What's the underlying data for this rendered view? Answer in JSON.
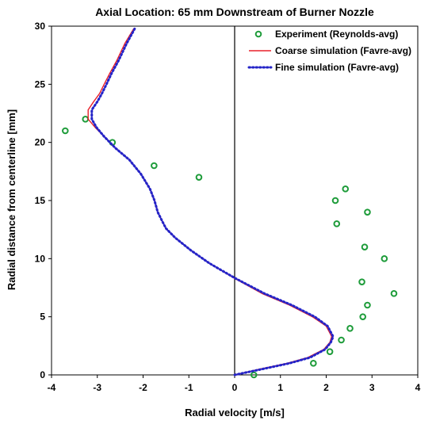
{
  "chart_data": {
    "type": "scatter",
    "title": "Axial Location: 65 mm Downstream of Burner Nozzle",
    "xlabel": "Radial velocity [m/s]",
    "ylabel": "Radial distance from centerline [mm]",
    "xlim": [
      -4,
      4
    ],
    "ylim": [
      0,
      30
    ],
    "xticks": [
      "-4",
      "-3",
      "-2",
      "-1",
      "0",
      "1",
      "2",
      "3",
      "4"
    ],
    "yticks": [
      "0",
      "5",
      "10",
      "15",
      "20",
      "25",
      "30"
    ],
    "grid": false,
    "legend_position": "top-right",
    "series": [
      {
        "name": "Experiment (Reynolds-avg)",
        "kind": "markers",
        "color": "#1e9c3a",
        "x": [
          0.42,
          1.72,
          2.08,
          2.33,
          2.52,
          2.8,
          2.9,
          3.48,
          2.78,
          3.27,
          2.84,
          2.23,
          2.9,
          2.2,
          2.42,
          -0.78,
          -1.76,
          -2.67,
          -3.26,
          -3.7
        ],
        "y": [
          0,
          1,
          2,
          3,
          4,
          5,
          6,
          7,
          8,
          10,
          11,
          13,
          14,
          15,
          16,
          17,
          18,
          20,
          22,
          21
        ]
      },
      {
        "name": "Coarse simulation (Favre-avg)",
        "kind": "solid",
        "color": "#e8202a",
        "x": [
          0.0,
          0.55,
          1.15,
          1.6,
          1.95,
          2.08,
          2.12,
          2.0,
          1.7,
          1.2,
          0.6,
          0.0,
          -0.55,
          -0.95,
          -1.3,
          -1.5,
          -1.58,
          -1.68,
          -1.75,
          -1.85,
          -2.05,
          -2.3,
          -2.6,
          -2.85,
          -3.05,
          -3.2,
          -3.2,
          -3.08,
          -2.95,
          -2.85,
          -2.72,
          -2.58,
          -2.4,
          -2.2
        ],
        "y": [
          0,
          0.5,
          1,
          1.5,
          2.2,
          2.8,
          3.3,
          4.2,
          5.0,
          6.0,
          7.0,
          8.3,
          9.6,
          10.7,
          11.8,
          12.6,
          13.2,
          14.0,
          15.0,
          16.0,
          17.3,
          18.5,
          19.5,
          20.5,
          21.3,
          22.0,
          22.8,
          23.5,
          24.2,
          25.0,
          26.0,
          27.0,
          28.5,
          29.8
        ]
      },
      {
        "name": "Fine simulation (Favre-avg)",
        "kind": "dotted",
        "color": "#2424c8",
        "x": [
          0.0,
          0.6,
          1.2,
          1.65,
          1.98,
          2.1,
          2.15,
          2.03,
          1.75,
          1.25,
          0.65,
          0.02,
          -0.55,
          -0.95,
          -1.3,
          -1.5,
          -1.58,
          -1.68,
          -1.75,
          -1.85,
          -2.05,
          -2.3,
          -2.6,
          -2.85,
          -3.02,
          -3.12,
          -3.12,
          -3.0,
          -2.9,
          -2.8,
          -2.68,
          -2.54,
          -2.36,
          -2.18
        ],
        "y": [
          0,
          0.5,
          1,
          1.5,
          2.2,
          2.8,
          3.3,
          4.2,
          5.0,
          6.0,
          7.0,
          8.3,
          9.6,
          10.7,
          11.8,
          12.6,
          13.2,
          14.0,
          15.0,
          16.0,
          17.3,
          18.5,
          19.5,
          20.5,
          21.3,
          22.0,
          22.8,
          23.5,
          24.2,
          25.0,
          26.0,
          27.0,
          28.5,
          29.8
        ]
      }
    ]
  }
}
